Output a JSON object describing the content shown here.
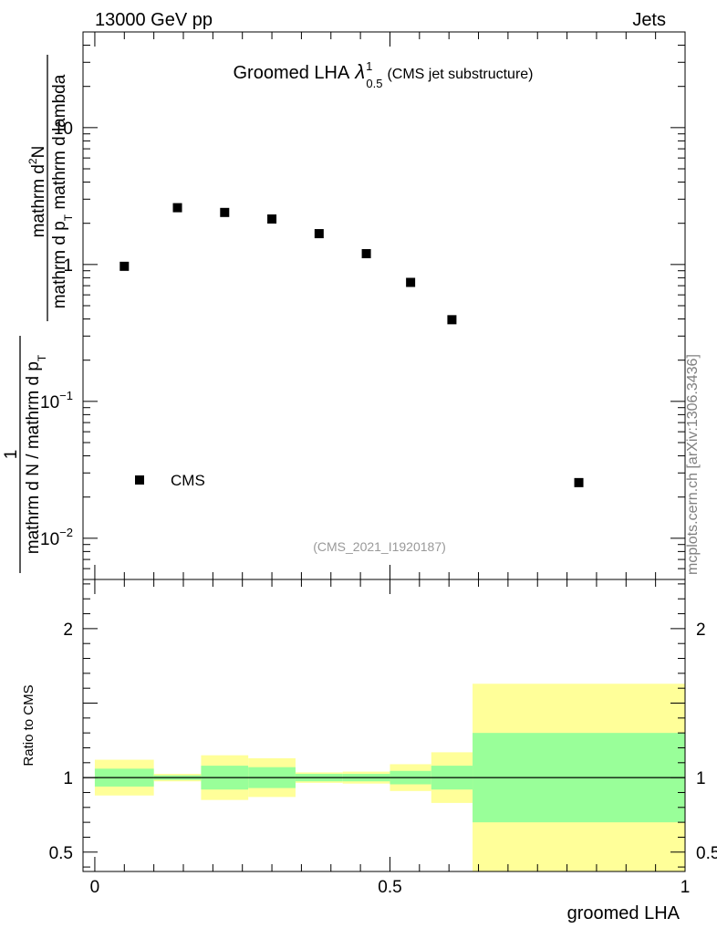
{
  "header": {
    "energy_label": "13000 GeV pp",
    "process_label": "Jets"
  },
  "watermark": "mcplots.cern.ch [arXiv:1306.3436]",
  "chart_data": [
    {
      "type": "scatter",
      "panel": "main",
      "title_main": "Groomed LHA",
      "title_lambda": "λ",
      "title_sup": "1",
      "title_sub": "0.5",
      "title_suffix": "(CMS jet substructure)",
      "ylabel_numerator_main": "mathrm d",
      "ylabel_numerator_sup": "2",
      "ylabel_numerator_end": "N",
      "ylabel_denominator": "mathrm d p_T mathrm d lambda",
      "ylabel_denominator_main": "mathrm d p",
      "ylabel_denominator_sub": "T",
      "ylabel_denominator_end": " mathrm d lambda",
      "ylabel_prefactor_one": "1",
      "ylabel_prefactor": "mathrm d N / mathrm d p_T",
      "ylabel_prefactor_main": "mathrm d N / mathrm d p",
      "ylabel_prefactor_sub": "T",
      "yscale": "log",
      "ylim": [
        0.005,
        50
      ],
      "xlim": [
        -0.02,
        1.0
      ],
      "y_ticks": [
        {
          "value": 10,
          "label": "10"
        },
        {
          "value": 1,
          "label": "1"
        },
        {
          "value": 0.1,
          "base": "10",
          "exp": "−1"
        },
        {
          "value": 0.01,
          "base": "10",
          "exp": "−2"
        }
      ],
      "series": [
        {
          "name": "CMS",
          "marker": "square",
          "color": "#000000",
          "x": [
            0.05,
            0.14,
            0.22,
            0.3,
            0.38,
            0.46,
            0.535,
            0.605,
            0.82
          ],
          "y": [
            0.97,
            2.6,
            2.4,
            2.15,
            1.68,
            1.2,
            0.74,
            0.395,
            0.0255
          ]
        }
      ],
      "legend_label": "CMS",
      "legend_position": "bottom-left",
      "analysis_id": "(CMS_2021_I1920187)"
    },
    {
      "type": "bar",
      "panel": "ratio",
      "ylabel": "Ratio to CMS",
      "xlabel": "groomed LHA",
      "ylim": [
        0.37,
        2.33
      ],
      "xlim": [
        -0.02,
        1.0
      ],
      "reference_line": 1,
      "x_ticks": [
        {
          "value": 0,
          "label": "0"
        },
        {
          "value": 0.5,
          "label": "0.5"
        },
        {
          "value": 1,
          "label": "1"
        }
      ],
      "y_ticks": [
        {
          "value": 2,
          "label": "2"
        },
        {
          "value": 1,
          "label": "1"
        },
        {
          "value": 0.5,
          "label": "0.5"
        }
      ],
      "band_colors": {
        "stat": "#99ff99",
        "total": "#ffff99"
      },
      "bins": [
        {
          "lo": 0.0,
          "hi": 0.1,
          "stat": [
            0.94,
            1.06
          ],
          "total": [
            0.88,
            1.12
          ]
        },
        {
          "lo": 0.1,
          "hi": 0.18,
          "stat": [
            0.985,
            1.015
          ],
          "total": [
            0.975,
            1.025
          ]
        },
        {
          "lo": 0.18,
          "hi": 0.26,
          "stat": [
            0.92,
            1.08
          ],
          "total": [
            0.85,
            1.15
          ]
        },
        {
          "lo": 0.26,
          "hi": 0.34,
          "stat": [
            0.93,
            1.07
          ],
          "total": [
            0.87,
            1.13
          ]
        },
        {
          "lo": 0.34,
          "hi": 0.42,
          "stat": [
            0.975,
            1.025
          ],
          "total": [
            0.965,
            1.035
          ]
        },
        {
          "lo": 0.42,
          "hi": 0.5,
          "stat": [
            0.975,
            1.025
          ],
          "total": [
            0.96,
            1.04
          ]
        },
        {
          "lo": 0.5,
          "hi": 0.57,
          "stat": [
            0.955,
            1.045
          ],
          "total": [
            0.91,
            1.09
          ]
        },
        {
          "lo": 0.57,
          "hi": 0.64,
          "stat": [
            0.92,
            1.08
          ],
          "total": [
            0.83,
            1.17
          ]
        },
        {
          "lo": 0.64,
          "hi": 1.0,
          "stat": [
            0.7,
            1.3
          ],
          "total": [
            0.37,
            1.63
          ]
        }
      ]
    }
  ]
}
